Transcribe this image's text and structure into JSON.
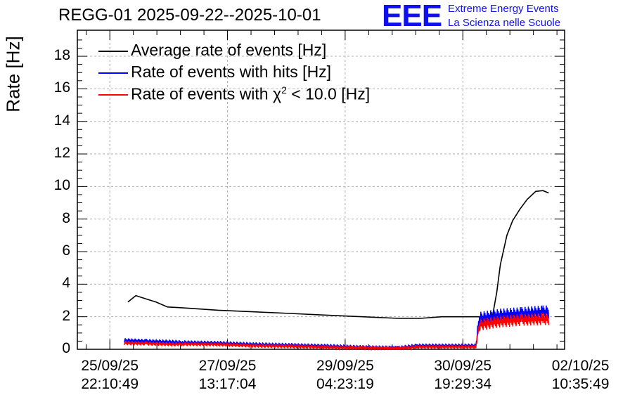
{
  "header": {
    "title": "REGG-01 2025-09-22--2025-10-01",
    "logo": "EEE",
    "logo_line1": "Extreme Energy Events",
    "logo_line2": "La Scienza nelle Scuole"
  },
  "colors": {
    "avg": "#000000",
    "hits": "#0000ff",
    "chi2": "#ff0000",
    "logo": "#1010ee",
    "grid": "#b0b0b0"
  },
  "chart_data": {
    "type": "line",
    "title": "REGG-01 2025-09-22--2025-10-01",
    "ylabel": "Rate [Hz]",
    "xlabel": "",
    "grid": true,
    "legend_position": "top-left",
    "ylim": [
      0,
      19.6
    ],
    "x_unit": "days since 25/09/25 22:10:49",
    "xlim": [
      -0.45,
      6.3
    ],
    "yticks": [
      "0",
      "2",
      "4",
      "6",
      "8",
      "10",
      "12",
      "14",
      "16",
      "18"
    ],
    "xticks": [
      {
        "line1": "25/09/25",
        "line2": "22:10:49",
        "x": 0
      },
      {
        "line1": "27/09/25",
        "line2": "13:17:04",
        "x": 1.63
      },
      {
        "line1": "29/09/25",
        "line2": "04:23:19",
        "x": 3.26
      },
      {
        "line1": "30/09/25",
        "line2": "19:29:34",
        "x": 4.89
      },
      {
        "line1": "02/10/25",
        "line2": "10:35:49",
        "x": 6.52
      }
    ],
    "series": [
      {
        "name": "Average rate of events [Hz]",
        "x": [
          0.25,
          0.36,
          0.5,
          0.64,
          0.8,
          1.0,
          1.5,
          2.0,
          2.5,
          3.0,
          3.5,
          4.0,
          4.3,
          4.6,
          4.83,
          5.0,
          5.3,
          5.36,
          5.41,
          5.5,
          5.58,
          5.68,
          5.78,
          5.9,
          6.0,
          6.08
        ],
        "y": [
          2.9,
          3.3,
          3.1,
          2.9,
          2.6,
          2.55,
          2.4,
          2.3,
          2.2,
          2.1,
          2.0,
          1.9,
          1.9,
          2.0,
          2.0,
          2.0,
          2.0,
          3.5,
          5.2,
          7.0,
          7.9,
          8.6,
          9.2,
          9.7,
          9.75,
          9.6
        ]
      },
      {
        "name": "Rate of events with hits [Hz]",
        "x": [
          0.2,
          0.5,
          0.87,
          1.0,
          1.5,
          2.0,
          2.5,
          3.0,
          3.5,
          4.0,
          4.25,
          4.8,
          5.07,
          5.12,
          5.4,
          5.7,
          6.0,
          6.08
        ],
        "y": [
          0.55,
          0.5,
          0.45,
          0.42,
          0.38,
          0.3,
          0.25,
          0.2,
          0.12,
          0.08,
          0.22,
          0.22,
          0.22,
          1.9,
          2.1,
          2.2,
          2.3,
          2.3
        ]
      },
      {
        "name": "Rate of events with χ² < 10.0 [Hz]",
        "x": [
          0.2,
          0.5,
          0.87,
          1.0,
          1.5,
          2.0,
          2.5,
          3.0,
          3.5,
          4.0,
          4.25,
          4.8,
          5.07,
          5.12,
          5.4,
          5.7,
          6.0,
          6.08
        ],
        "y": [
          0.38,
          0.35,
          0.3,
          0.32,
          0.3,
          0.22,
          0.18,
          0.13,
          0.08,
          0.04,
          0.15,
          0.15,
          0.15,
          1.5,
          1.7,
          1.8,
          1.85,
          1.85
        ]
      }
    ]
  },
  "legend": {
    "items": [
      {
        "label": "Average rate of events [Hz]"
      },
      {
        "label": "Rate of events with hits [Hz]"
      },
      {
        "label_pre": "Rate of events with ",
        "label_chi": "χ",
        "label_sup": "2",
        "label_post": " < 10.0 [Hz]"
      }
    ]
  }
}
